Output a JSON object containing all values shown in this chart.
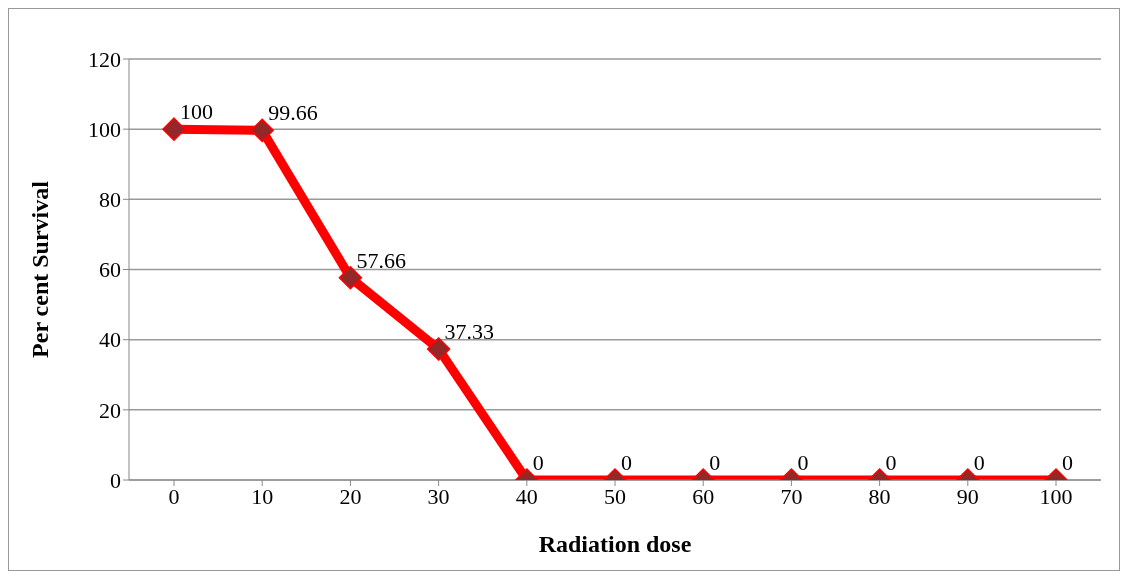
{
  "chart_data": {
    "type": "line",
    "xlabel": "Radiation dose",
    "ylabel": "Per cent Survival",
    "categories": [
      "0",
      "10",
      "20",
      "30",
      "40",
      "50",
      "60",
      "70",
      "80",
      "90",
      "100"
    ],
    "series": [
      {
        "color": "#ff0000",
        "values": [
          100,
          99.66,
          57.66,
          37.33,
          0,
          0,
          0,
          0,
          0,
          0,
          0
        ]
      }
    ],
    "ylim": [
      0,
      120
    ],
    "yticks": [
      0,
      20,
      40,
      60,
      80,
      100,
      120
    ],
    "grid": "y",
    "marker": "diamond",
    "line_style": "solid",
    "data_labels": true,
    "legend": false
  }
}
